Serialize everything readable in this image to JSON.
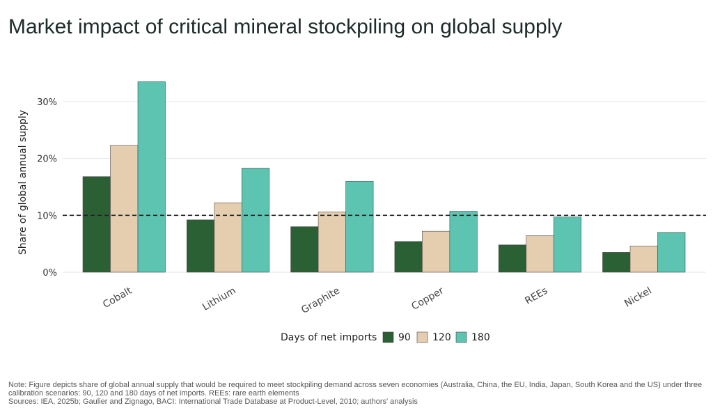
{
  "title": "Market impact of critical mineral stockpiling on global supply",
  "note": "Note: Figure depicts share of global annual supply that would be required to meet stockpiling demand across seven economies (Australia, China, the EU, India, Japan, South Korea and the US) under three calibration scenarios: 90, 120 and 180 days of net imports. REEs: rare earth elements",
  "sources": "Sources: IEA, 2025b; Gaulier and Zignago, BACI: International Trade Database at Product-Level, 2010; authors' analysis",
  "colors": {
    "s90": "#2b5f34",
    "s120": "#e5cdb0",
    "s180": "#5cc4b0",
    "grid": "#e6e6e6",
    "reference": "#222222"
  },
  "chart_data": {
    "type": "bar",
    "ylabel": "Share of global annual supply",
    "legend_title": "Days of net imports",
    "legend_position": "bottom",
    "categories": [
      "Cobalt",
      "Lithium",
      "Graphite",
      "Copper",
      "REEs",
      "Nickel"
    ],
    "series": [
      {
        "name": "90",
        "values": [
          16.8,
          9.2,
          8.0,
          5.4,
          4.8,
          3.5
        ]
      },
      {
        "name": "120",
        "values": [
          22.3,
          12.2,
          10.6,
          7.2,
          6.4,
          4.6
        ]
      },
      {
        "name": "180",
        "values": [
          33.5,
          18.3,
          16.0,
          10.7,
          9.7,
          7.0
        ]
      }
    ],
    "ylim": [
      0,
      35
    ],
    "yticks": [
      0,
      10,
      20,
      30
    ],
    "ytick_labels": [
      "0%",
      "10%",
      "20%",
      "30%"
    ],
    "reference_line": 10,
    "grid": true
  }
}
